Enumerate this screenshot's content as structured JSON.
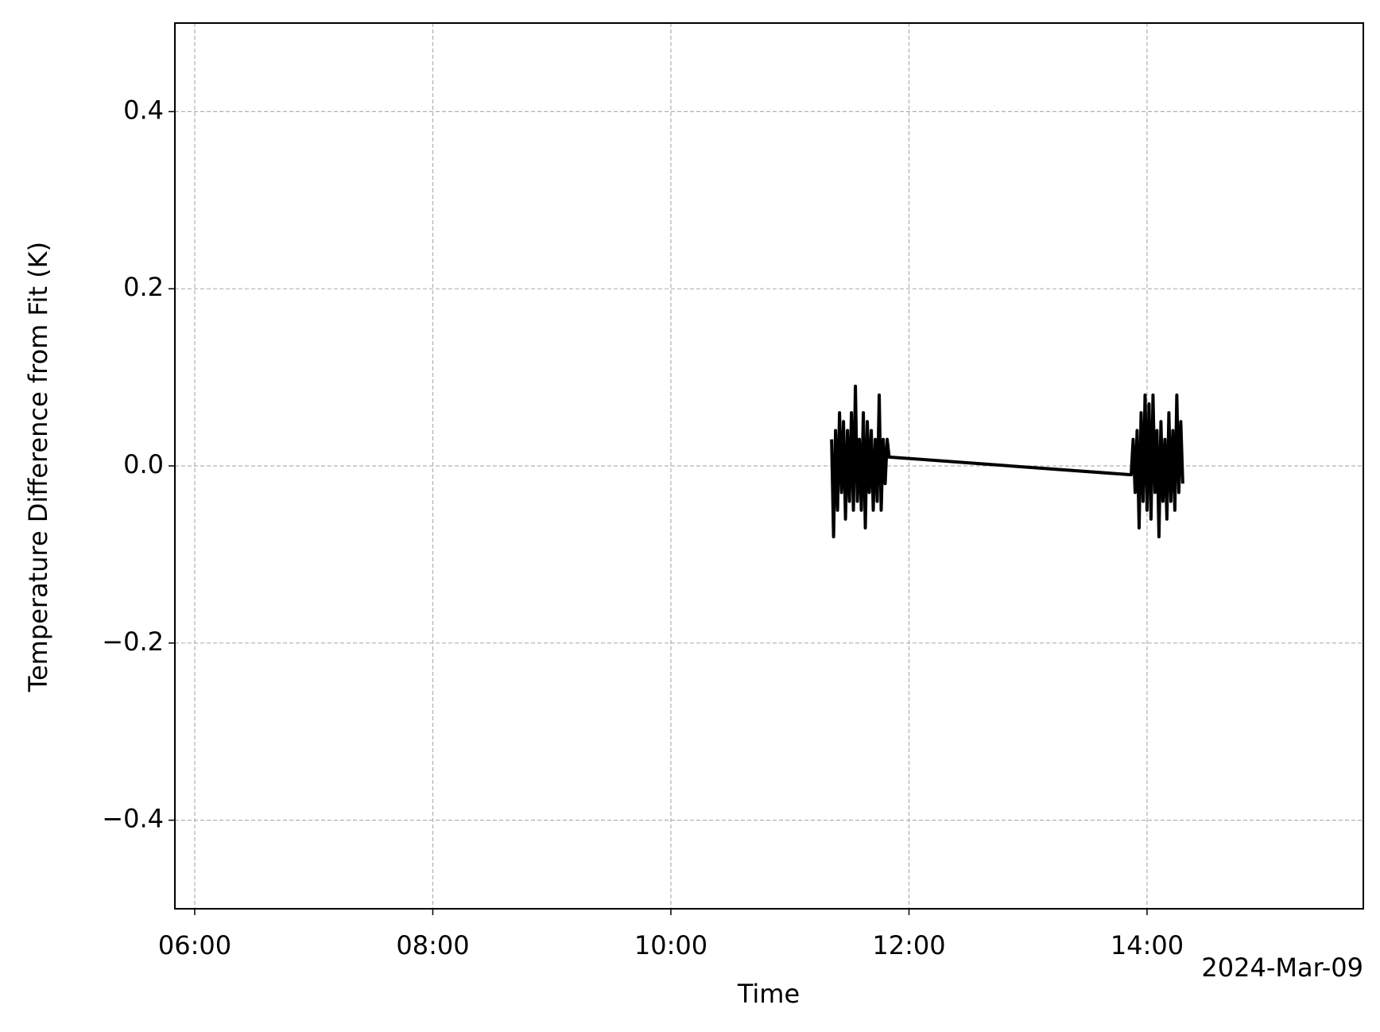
{
  "chart_data": {
    "type": "line",
    "y_label": "Temperature Difference from Fit (K)",
    "x_label": "Time",
    "x_offset_label": "2024-Mar-09",
    "color": "#000000",
    "grid": true,
    "x": [
      "11:21",
      "11:22",
      "11:23",
      "11:24",
      "11:25",
      "11:26",
      "11:27",
      "11:28",
      "11:29",
      "11:30",
      "11:31",
      "11:32",
      "11:33",
      "11:34",
      "11:35",
      "11:36",
      "11:37",
      "11:38",
      "11:39",
      "11:40",
      "11:41",
      "11:42",
      "11:43",
      "11:44",
      "11:45",
      "11:46",
      "11:47",
      "11:48",
      "11:49",
      "11:50",
      "13:52",
      "13:53",
      "13:54",
      "13:55",
      "13:56",
      "13:57",
      "13:58",
      "13:59",
      "14:00",
      "14:01",
      "14:02",
      "14:03",
      "14:04",
      "14:05",
      "14:06",
      "14:07",
      "14:08",
      "14:09",
      "14:10",
      "14:11",
      "14:12",
      "14:13",
      "14:14",
      "14:15",
      "14:16",
      "14:17",
      "14:18"
    ],
    "values": [
      0.03,
      -0.08,
      0.04,
      -0.05,
      0.06,
      -0.03,
      0.05,
      -0.06,
      0.04,
      -0.04,
      0.06,
      -0.05,
      0.09,
      -0.04,
      0.03,
      -0.05,
      0.06,
      -0.07,
      0.05,
      -0.03,
      0.04,
      -0.05,
      0.03,
      -0.04,
      0.08,
      -0.05,
      0.03,
      -0.02,
      0.03,
      0.01,
      -0.01,
      0.03,
      -0.03,
      0.04,
      -0.07,
      0.06,
      -0.04,
      0.08,
      -0.05,
      0.07,
      -0.06,
      0.08,
      -0.03,
      0.04,
      -0.08,
      0.05,
      -0.04,
      0.03,
      -0.06,
      0.06,
      -0.04,
      0.04,
      -0.05,
      0.08,
      -0.03,
      0.05,
      -0.02
    ],
    "xlim": [
      "05:50",
      "15:49"
    ],
    "xticks": [
      "06:00",
      "08:00",
      "10:00",
      "12:00",
      "14:00"
    ],
    "ylim": [
      -0.5,
      0.5
    ],
    "yticks": [
      {
        "value": -0.4,
        "label": "−0.4"
      },
      {
        "value": -0.2,
        "label": "−0.2"
      },
      {
        "value": 0,
        "label": "0.0"
      },
      0.2,
      0.4
    ]
  }
}
